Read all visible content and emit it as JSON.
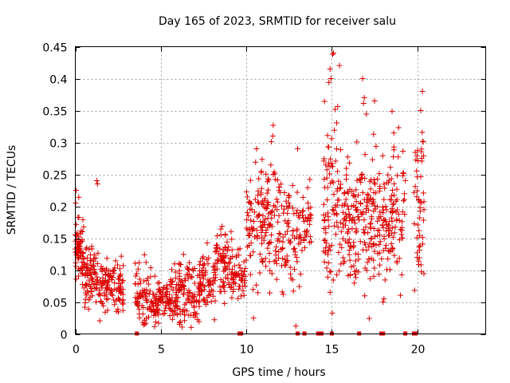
{
  "chart_data": {
    "type": "scatter",
    "title": "Day 165 of 2023, SRMTID for receiver salu",
    "xlabel": "GPS time / hours",
    "ylabel": "SRMTID / TECUs",
    "xlim": [
      0,
      24
    ],
    "ylim": [
      0,
      0.45
    ],
    "xticks": [
      0,
      5,
      10,
      15,
      20
    ],
    "yticks": [
      0,
      0.05,
      0.1,
      0.15,
      0.2,
      0.25,
      0.3,
      0.35,
      0.4,
      0.45
    ],
    "xtick_labels": [
      "0",
      "5",
      "10",
      "15",
      "20"
    ],
    "ytick_labels": [
      "0",
      "0.05",
      "0.1",
      "0.15",
      "0.2",
      "0.25",
      "0.3",
      "0.35",
      "0.4",
      "0.45"
    ],
    "grid": true,
    "marker": "+",
    "color": "#dd0000",
    "clusters": [
      {
        "start": 0.0,
        "end": 0.5,
        "mean": 0.13,
        "spread": 0.03,
        "count": 70
      },
      {
        "start": 0.5,
        "end": 1.2,
        "mean": 0.095,
        "spread": 0.025,
        "count": 70
      },
      {
        "start": 1.2,
        "end": 2.0,
        "mean": 0.075,
        "spread": 0.02,
        "count": 60
      },
      {
        "start": 2.0,
        "end": 2.8,
        "mean": 0.075,
        "spread": 0.025,
        "count": 60
      },
      {
        "start": 3.5,
        "end": 4.5,
        "mean": 0.06,
        "spread": 0.025,
        "count": 70
      },
      {
        "start": 4.5,
        "end": 5.8,
        "mean": 0.055,
        "spread": 0.02,
        "count": 100
      },
      {
        "start": 5.8,
        "end": 7.2,
        "mean": 0.06,
        "spread": 0.025,
        "count": 110
      },
      {
        "start": 7.2,
        "end": 8.2,
        "mean": 0.08,
        "spread": 0.025,
        "count": 80
      },
      {
        "start": 8.2,
        "end": 9.2,
        "mean": 0.11,
        "spread": 0.03,
        "count": 80
      },
      {
        "start": 9.2,
        "end": 10.0,
        "mean": 0.09,
        "spread": 0.02,
        "count": 50
      },
      {
        "start": 10.0,
        "end": 11.0,
        "mean": 0.16,
        "spread": 0.045,
        "count": 80
      },
      {
        "start": 11.0,
        "end": 12.0,
        "mean": 0.17,
        "spread": 0.05,
        "count": 80
      },
      {
        "start": 12.0,
        "end": 13.3,
        "mean": 0.15,
        "spread": 0.045,
        "count": 80
      },
      {
        "start": 13.3,
        "end": 13.8,
        "mean": 0.17,
        "spread": 0.03,
        "count": 30
      },
      {
        "start": 14.5,
        "end": 15.5,
        "mean": 0.22,
        "spread": 0.08,
        "count": 90
      },
      {
        "start": 15.5,
        "end": 16.5,
        "mean": 0.17,
        "spread": 0.05,
        "count": 90
      },
      {
        "start": 16.5,
        "end": 17.5,
        "mean": 0.2,
        "spread": 0.065,
        "count": 90
      },
      {
        "start": 17.5,
        "end": 18.5,
        "mean": 0.17,
        "spread": 0.05,
        "count": 80
      },
      {
        "start": 18.5,
        "end": 19.3,
        "mean": 0.2,
        "spread": 0.05,
        "count": 60
      },
      {
        "start": 19.8,
        "end": 20.4,
        "mean": 0.2,
        "spread": 0.07,
        "count": 50
      }
    ],
    "peaks": [
      {
        "x": 15.1,
        "y": 0.44
      },
      {
        "x": 15.05,
        "y": 0.438
      },
      {
        "x": 16.8,
        "y": 0.4
      },
      {
        "x": 14.9,
        "y": 0.415
      },
      {
        "x": 14.95,
        "y": 0.4
      },
      {
        "x": 17.5,
        "y": 0.365
      },
      {
        "x": 16.9,
        "y": 0.37
      },
      {
        "x": 20.3,
        "y": 0.38
      },
      {
        "x": 20.2,
        "y": 0.35
      },
      {
        "x": 11.55,
        "y": 0.31
      },
      {
        "x": 10.6,
        "y": 0.29
      },
      {
        "x": 13.0,
        "y": 0.29
      },
      {
        "x": 0.05,
        "y": 0.225
      },
      {
        "x": 1.25,
        "y": 0.24
      },
      {
        "x": 1.3,
        "y": 0.235
      },
      {
        "x": 0.02,
        "y": 0.205
      },
      {
        "x": 6.1,
        "y": 0.015
      },
      {
        "x": 18.0,
        "y": 0.05
      },
      {
        "x": 18.05,
        "y": 0.055
      }
    ],
    "zero_markers": [
      3.6,
      9.6,
      9.7,
      13.0,
      13.4,
      14.2,
      14.3,
      14.4,
      15.0,
      16.6,
      17.9,
      18.0,
      19.3,
      19.8,
      19.9
    ]
  }
}
